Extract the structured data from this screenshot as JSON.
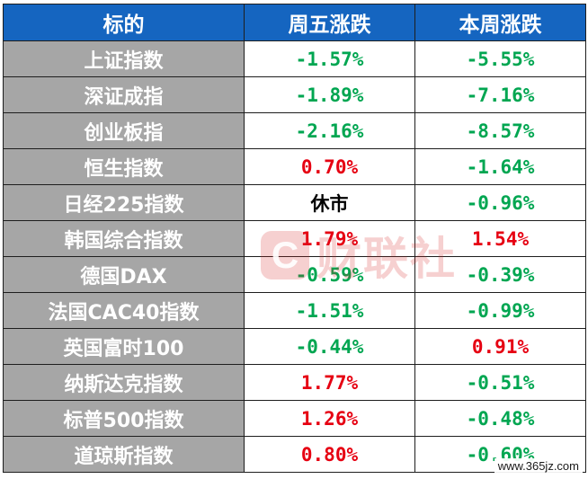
{
  "header": {
    "col1": "标的",
    "col2": "周五涨跌",
    "col3": "本周涨跌"
  },
  "rows": [
    {
      "name": "上证指数",
      "fri": "-1.57%",
      "fri_dir": "down",
      "week": "-5.55%",
      "week_dir": "down"
    },
    {
      "name": "深证成指",
      "fri": "-1.89%",
      "fri_dir": "down",
      "week": "-7.16%",
      "week_dir": "down"
    },
    {
      "name": "创业板指",
      "fri": "-2.16%",
      "fri_dir": "down",
      "week": "-8.57%",
      "week_dir": "down"
    },
    {
      "name": "恒生指数",
      "fri": "0.70%",
      "fri_dir": "up",
      "week": "-1.64%",
      "week_dir": "down"
    },
    {
      "name": "日经225指数",
      "fri": "休市",
      "fri_dir": "flat",
      "week": "-0.96%",
      "week_dir": "down"
    },
    {
      "name": "韩国综合指数",
      "fri": "1.79%",
      "fri_dir": "up",
      "week": "1.54%",
      "week_dir": "up"
    },
    {
      "name": "德国DAX",
      "fri": "-0.59%",
      "fri_dir": "down",
      "week": "-0.39%",
      "week_dir": "down"
    },
    {
      "name": "法国CAC40指数",
      "fri": "-1.51%",
      "fri_dir": "down",
      "week": "-0.99%",
      "week_dir": "down"
    },
    {
      "name": "英国富时100",
      "fri": "-0.44%",
      "fri_dir": "down",
      "week": "0.91%",
      "week_dir": "up"
    },
    {
      "name": "纳斯达克指数",
      "fri": "1.77%",
      "fri_dir": "up",
      "week": "-0.51%",
      "week_dir": "down"
    },
    {
      "name": "标普500指数",
      "fri": "1.26%",
      "fri_dir": "up",
      "week": "-0.48%",
      "week_dir": "down"
    },
    {
      "name": "道琼斯指数",
      "fri": "0.80%",
      "fri_dir": "up",
      "week": "-0.60%",
      "week_dir": "down"
    }
  ],
  "colors": {
    "header_bg": "#1565c0",
    "name_bg": "#a6a6a6",
    "up": "#e60012",
    "down": "#00a651"
  },
  "watermark": {
    "logo_text": "财联社",
    "logo_mark": "C",
    "site": "www.365jz.com"
  }
}
